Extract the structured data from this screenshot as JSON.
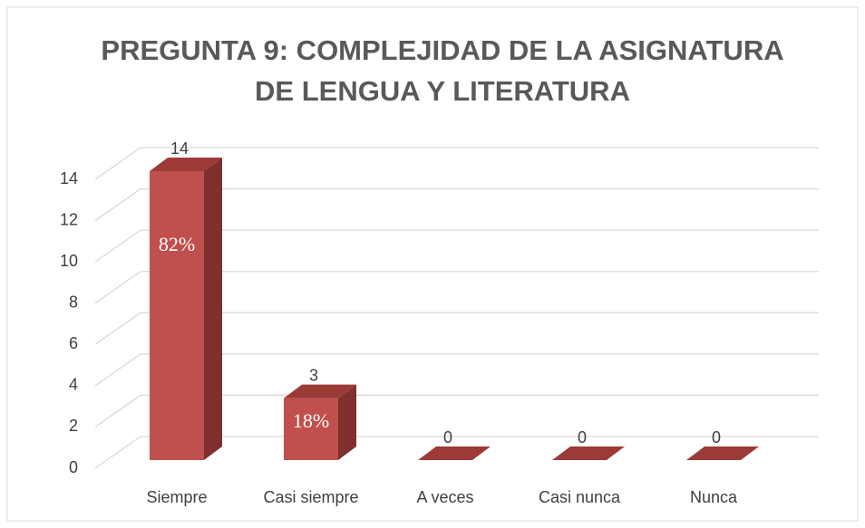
{
  "chart_data": {
    "type": "bar3d",
    "title": [
      "PREGUNTA 9: COMPLEJIDAD DE LA ASIGNATURA",
      "DE LENGUA Y LITERATURA"
    ],
    "categories": [
      "Siempre",
      "Casi siempre",
      "A veces",
      "Casi nunca",
      "Nunca"
    ],
    "values": [
      14,
      3,
      0,
      0,
      0
    ],
    "percent_labels": [
      "82%",
      "18%",
      null,
      null,
      null
    ],
    "color": "#c0504d",
    "ylim": [
      0,
      14
    ],
    "yticks": [
      0,
      2,
      4,
      6,
      8,
      10,
      12,
      14
    ],
    "grid": true
  }
}
